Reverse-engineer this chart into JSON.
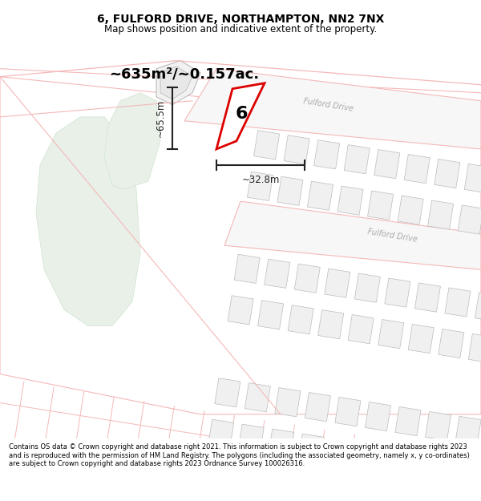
{
  "title": "6, FULFORD DRIVE, NORTHAMPTON, NN2 7NX",
  "subtitle": "Map shows position and indicative extent of the property.",
  "footer": "Contains OS data © Crown copyright and database right 2021. This information is subject to Crown copyright and database rights 2023 and is reproduced with the permission of HM Land Registry. The polygons (including the associated geometry, namely x, y co-ordinates) are subject to Crown copyright and database rights 2023 Ordnance Survey 100026316.",
  "area_label": "~635m²/~0.157ac.",
  "number_label": "6",
  "dim_vertical": "~65.5m",
  "dim_horizontal": "~32.8m",
  "road_label_1": "Fulford Drive",
  "road_label_2": "Fulford Drive",
  "bg_color": "#ffffff",
  "map_bg": "#ffffff",
  "green_color": "#e8f0e8",
  "green_edge": "#d0e4d0",
  "gray_building_fill": "#f0f0f0",
  "gray_building_edge": "#bbbbbb",
  "pink_edge": "#f5b8b8",
  "red_color": "#dd0000",
  "dim_color": "#222222",
  "road_text_color": "#aaaaaa",
  "title_size": 10,
  "subtitle_size": 8.5,
  "footer_size": 6.0
}
